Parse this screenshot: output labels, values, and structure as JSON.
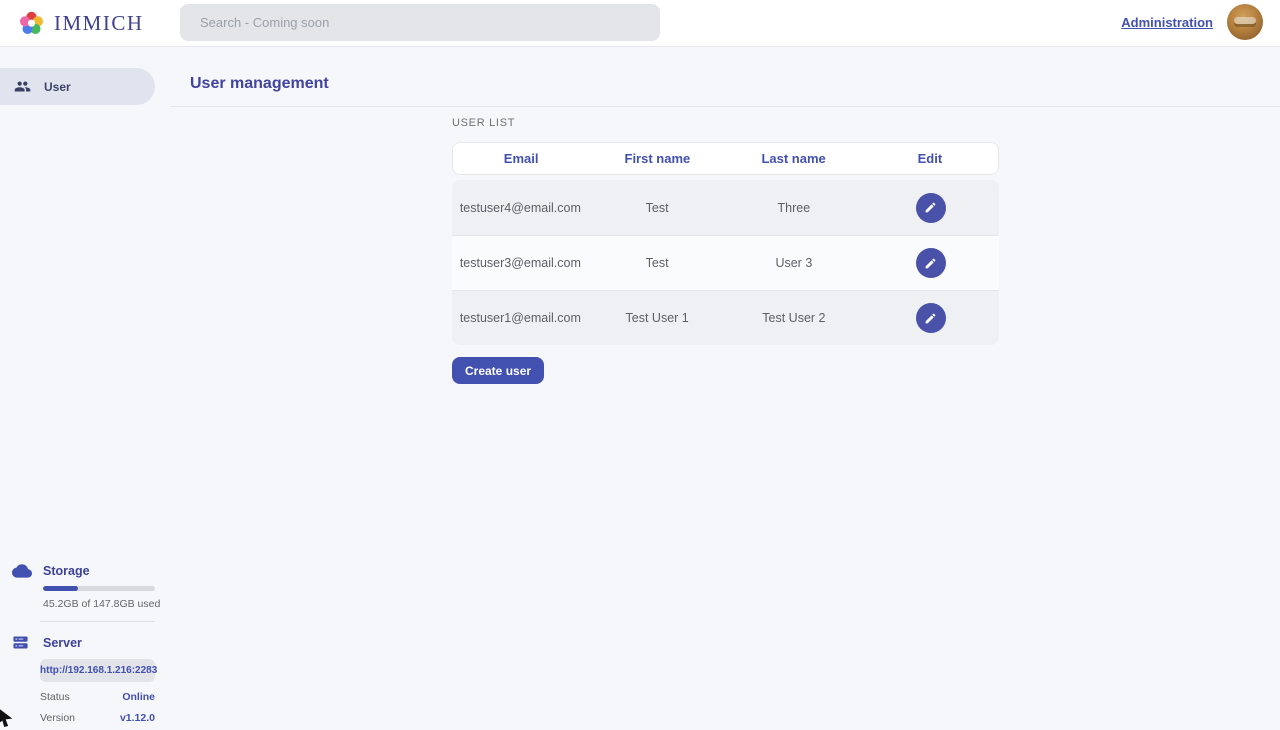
{
  "app": {
    "name": "IMMICH"
  },
  "nav": {
    "search_placeholder": "Search - Coming soon",
    "admin_label": "Administration"
  },
  "sidebar": {
    "items": [
      {
        "label": "User",
        "icon": "users-icon",
        "active": true
      }
    ],
    "storage": {
      "title": "Storage",
      "usage_text": "45.2GB of 147.8GB used",
      "percent_used": 31
    },
    "server": {
      "title": "Server",
      "url": "http://192.168.1.216:2283",
      "status_label": "Status",
      "status_value": "Online",
      "version_label": "Version",
      "version_value": "v1.12.0"
    }
  },
  "main": {
    "title": "User management",
    "section_label": "USER LIST",
    "table": {
      "columns": [
        "Email",
        "First name",
        "Last name",
        "Edit"
      ],
      "rows": [
        {
          "email": "testuser4@email.com",
          "first_name": "Test",
          "last_name": "Three"
        },
        {
          "email": "testuser3@email.com",
          "first_name": "Test",
          "last_name": "User 3"
        },
        {
          "email": "testuser1@email.com",
          "first_name": "Test User 1",
          "last_name": "Test User 2"
        }
      ]
    },
    "create_button": "Create user"
  },
  "colors": {
    "primary": "#4250af",
    "title_text": "#41439e",
    "row_alt": "#eff0f4",
    "nav_bg": "#ffffff",
    "page_bg": "#f6f7fb",
    "logo_petals": [
      "#e03e3e",
      "#f2b933",
      "#46b859",
      "#4b7ee8",
      "#ec68a8"
    ]
  }
}
